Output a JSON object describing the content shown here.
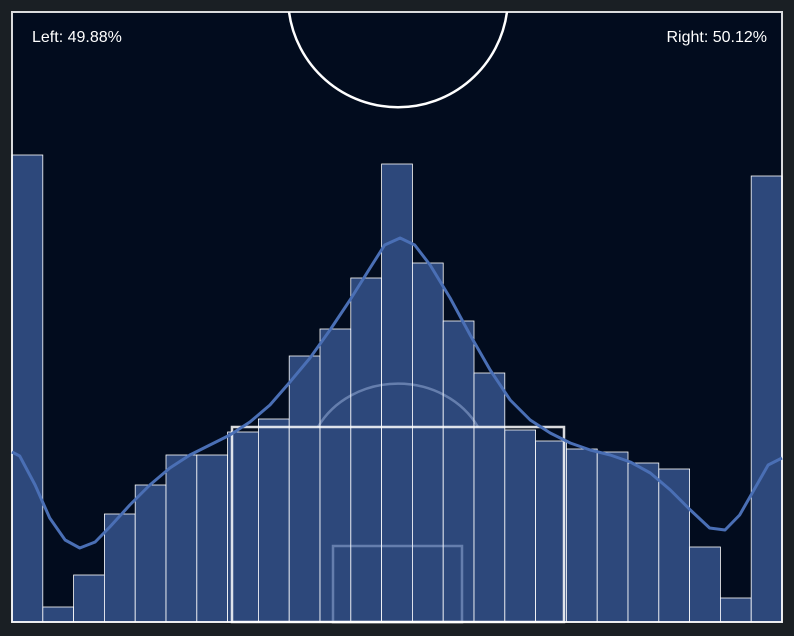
{
  "chart_data": {
    "type": "histogram",
    "annotations": [
      "Left: 49.88%",
      "Right: 50.12%"
    ],
    "bins": [
      0,
      4,
      8,
      12,
      16,
      20,
      24,
      28,
      32,
      36,
      40,
      44,
      48,
      52,
      56,
      60,
      64,
      68,
      72,
      76,
      80,
      84,
      88,
      92,
      96,
      100
    ],
    "values": [
      467,
      15,
      47,
      108,
      137,
      167,
      167,
      190,
      203,
      266,
      293,
      344,
      458,
      359,
      301,
      249,
      192,
      181,
      173,
      170,
      159,
      153,
      75,
      24,
      446
    ],
    "color": "#3a5a96",
    "line": {
      "color": "#4a6fb5",
      "x": [
        0,
        1.0,
        3.0,
        4.9,
        6.9,
        8.8,
        10.8,
        12.7,
        15.3,
        17.9,
        20.5,
        23.1,
        25.7,
        28.3,
        30.9,
        33.5,
        36.1,
        38.7,
        41.3,
        43.9,
        46.5,
        48.4,
        50.4,
        52.3,
        54.3,
        56.9,
        59.5,
        62.1,
        64.7,
        67.3,
        69.9,
        72.5,
        75.1,
        77.7,
        80.3,
        82.9,
        85.5,
        88.1,
        90.6,
        92.6,
        94.5,
        96.5,
        98.2,
        100
      ],
      "y": [
        170,
        166,
        137,
        104,
        82,
        74,
        80,
        95,
        117,
        137,
        154,
        167,
        177,
        187,
        200,
        217,
        240,
        264,
        292,
        322,
        354,
        377,
        384,
        377,
        357,
        324,
        287,
        252,
        222,
        202,
        189,
        179,
        172,
        167,
        160,
        149,
        132,
        112,
        94,
        92,
        107,
        134,
        157,
        164
      ]
    },
    "xlim": [
      0,
      100
    ],
    "ylim": [
      0,
      610
    ]
  }
}
